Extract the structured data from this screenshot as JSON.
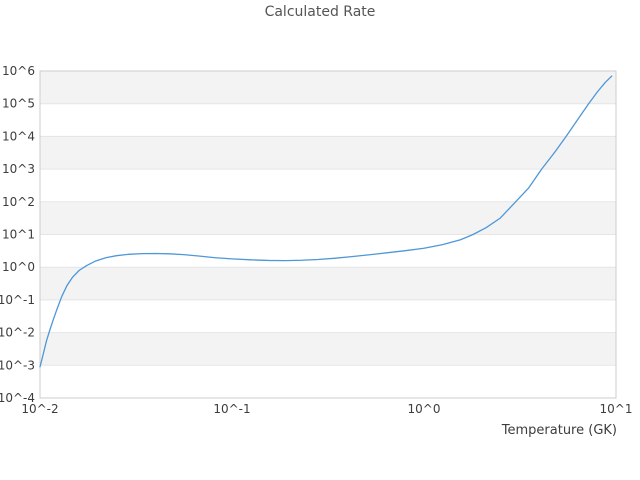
{
  "window": {
    "background": "#ffffff"
  },
  "chart_data": {
    "type": "line",
    "title": "Calculated Rate",
    "xlabel": "Temperature (GK)",
    "ylabel": "",
    "x_scale": "log",
    "y_scale": "log",
    "xlim": [
      0.01,
      10
    ],
    "ylim": [
      0.0001,
      1000000
    ],
    "grid": "horizontal-gridlines-only",
    "background_bands": "alternating-light-gray-per-decade",
    "legend": "none",
    "colors": {
      "line": "#4e97d8",
      "band_fill": "#f3f3f3",
      "grid_line": "#e5e5e5",
      "plot_border": "#cccccc",
      "title_text": "#555555",
      "tick_text": "#3d3d3d"
    },
    "x_ticks": [
      {
        "value": 0.01,
        "label": "10^-2"
      },
      {
        "value": 0.1,
        "label": "10^-1"
      },
      {
        "value": 1,
        "label": "10^0"
      },
      {
        "value": 10,
        "label": "10^1"
      }
    ],
    "y_ticks": [
      {
        "value": 1000000,
        "label": "10^6"
      },
      {
        "value": 100000,
        "label": "10^5"
      },
      {
        "value": 10000,
        "label": "10^4"
      },
      {
        "value": 1000,
        "label": "10^3"
      },
      {
        "value": 100,
        "label": "10^2"
      },
      {
        "value": 10,
        "label": "10^1"
      },
      {
        "value": 1,
        "label": "10^0"
      },
      {
        "value": 0.1,
        "label": "10^-1"
      },
      {
        "value": 0.01,
        "label": "10^-2"
      },
      {
        "value": 0.001,
        "label": "10^-3"
      },
      {
        "value": 0.0001,
        "label": "10^-4"
      }
    ],
    "gray_band_top_exponents": [
      6,
      4,
      2,
      0,
      -2
    ],
    "series": [
      {
        "name": "calculated-rate",
        "points": [
          [
            0.01,
            0.0009
          ],
          [
            0.0102,
            0.0014
          ],
          [
            0.0105,
            0.0028
          ],
          [
            0.0108,
            0.0055
          ],
          [
            0.0112,
            0.011
          ],
          [
            0.0117,
            0.024
          ],
          [
            0.0123,
            0.055
          ],
          [
            0.013,
            0.13
          ],
          [
            0.0138,
            0.27
          ],
          [
            0.0148,
            0.5
          ],
          [
            0.016,
            0.8
          ],
          [
            0.0175,
            1.12
          ],
          [
            0.0195,
            1.55
          ],
          [
            0.022,
            1.95
          ],
          [
            0.025,
            2.25
          ],
          [
            0.029,
            2.48
          ],
          [
            0.034,
            2.6
          ],
          [
            0.04,
            2.63
          ],
          [
            0.047,
            2.57
          ],
          [
            0.056,
            2.42
          ],
          [
            0.068,
            2.18
          ],
          [
            0.082,
            1.95
          ],
          [
            0.1,
            1.8
          ],
          [
            0.125,
            1.68
          ],
          [
            0.155,
            1.61
          ],
          [
            0.19,
            1.59
          ],
          [
            0.23,
            1.63
          ],
          [
            0.28,
            1.72
          ],
          [
            0.34,
            1.87
          ],
          [
            0.42,
            2.1
          ],
          [
            0.52,
            2.4
          ],
          [
            0.64,
            2.75
          ],
          [
            0.8,
            3.2
          ],
          [
            1.0,
            3.8
          ],
          [
            1.25,
            4.9
          ],
          [
            1.55,
            6.9
          ],
          [
            1.8,
            10.0
          ],
          [
            2.1,
            16.0
          ],
          [
            2.5,
            32.0
          ],
          [
            3.0,
            100.0
          ],
          [
            3.5,
            260.0
          ],
          [
            4.1,
            1000.0
          ],
          [
            4.8,
            3300.0
          ],
          [
            5.5,
            10000.0
          ],
          [
            6.3,
            32000.0
          ],
          [
            7.2,
            100000.0
          ],
          [
            8.0,
            230000.0
          ],
          [
            8.8,
            450000.0
          ],
          [
            9.5,
            700000.0
          ]
        ]
      }
    ]
  }
}
